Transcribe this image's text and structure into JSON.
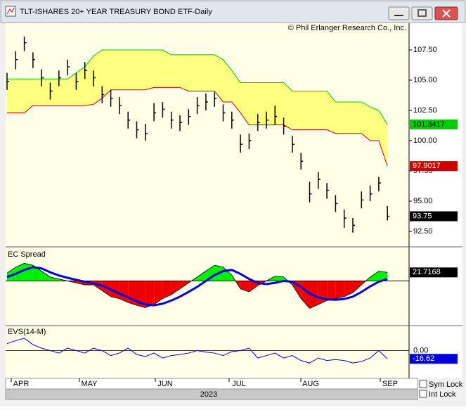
{
  "window": {
    "title": "TLT-ISHARES 20+ YEAR TREASURY BOND ETF-Daily"
  },
  "chart_data": [
    {
      "type": "ohlc",
      "annotation": "© Phil Erlanger Research Co., Inc.",
      "ylim": [
        91.28,
        109.71
      ],
      "yticks": [
        {
          "value": 107.5,
          "label": "107.50"
        },
        {
          "value": 105,
          "label": "105.00"
        },
        {
          "value": 102.5,
          "label": "102.50"
        },
        {
          "value": 100,
          "label": "100.00"
        },
        {
          "value": 97.5,
          "label": "97.50"
        },
        {
          "value": 95,
          "label": "95.00"
        },
        {
          "value": 92.5,
          "label": "92.50"
        }
      ],
      "high": [
        105.6,
        107.4,
        108.6,
        107.3,
        105.9,
        104.8,
        105.8,
        106.7,
        105.6,
        106.5,
        105.8,
        104.5,
        104.2,
        103.6,
        102.4,
        101.6,
        101.4,
        103.1,
        103.2,
        102.4,
        102.1,
        102.6,
        103.6,
        103.9,
        104.0,
        103.0,
        102.4,
        100.5,
        100.6,
        102.2,
        102.4,
        102.9,
        101.9,
        100.4,
        99.0,
        96.6,
        97.4,
        96.5,
        95.5,
        94.3,
        93.6,
        95.8,
        96.3,
        97.0,
        94.6
      ],
      "low": [
        104.2,
        105.9,
        107.4,
        106.0,
        104.5,
        103.4,
        104.5,
        105.4,
        104.2,
        105.1,
        104.5,
        103.1,
        102.8,
        102.2,
        101.0,
        100.2,
        100.0,
        101.6,
        101.9,
        101.0,
        100.8,
        101.3,
        102.2,
        102.5,
        102.8,
        101.6,
        101.0,
        99.0,
        99.3,
        100.8,
        101.0,
        101.3,
        100.5,
        99.0,
        97.6,
        94.9,
        96.0,
        95.2,
        94.1,
        92.8,
        92.4,
        94.4,
        95.0,
        95.8,
        93.4
      ],
      "close": [
        104.9,
        106.7,
        108.1,
        106.7,
        105.2,
        104.1,
        105.2,
        106.1,
        104.9,
        105.8,
        105.2,
        103.8,
        103.5,
        102.9,
        101.7,
        100.9,
        100.6,
        102.3,
        102.6,
        101.7,
        101.5,
        102.0,
        102.9,
        103.2,
        103.5,
        102.3,
        101.7,
        99.7,
        100.0,
        101.5,
        101.7,
        102.0,
        101.2,
        99.7,
        98.3,
        95.6,
        96.8,
        95.9,
        94.8,
        93.6,
        93.0,
        95.1,
        95.6,
        96.5,
        93.75
      ],
      "upper_band": [
        105.1,
        105.1,
        105.1,
        105.1,
        105.1,
        105.1,
        105.1,
        105.1,
        105.6,
        106.1,
        107.0,
        107.5,
        107.5,
        107.5,
        107.5,
        107.5,
        107.5,
        107.5,
        107.5,
        107.1,
        107.1,
        107.1,
        107.1,
        107.1,
        107.1,
        106.7,
        105.8,
        104.8,
        104.8,
        104.8,
        104.8,
        104.8,
        104.8,
        104.1,
        104.1,
        104.1,
        104.1,
        104.1,
        103.2,
        103.2,
        103.2,
        103.2,
        102.8,
        102.5,
        101.3417
      ],
      "lower_band": [
        102.3,
        102.3,
        102.3,
        102.9,
        102.9,
        102.9,
        102.9,
        102.9,
        102.9,
        102.9,
        103.0,
        103.5,
        104.2,
        104.2,
        104.2,
        104.2,
        104.2,
        104.4,
        104.4,
        104.4,
        104.4,
        104.1,
        104.1,
        104.1,
        104.1,
        103.2,
        103.2,
        102.3,
        101.3,
        101.3,
        101.3,
        101.3,
        101.3,
        100.9,
        100.9,
        100.9,
        100.9,
        100.9,
        100.6,
        100.6,
        100.6,
        100.6,
        100.0,
        100.0,
        97.9017
      ],
      "colors": {
        "bars": "#000000",
        "upper": "#00cc00",
        "lower": "#cc0000",
        "band": "#ffff80",
        "close_box": "#000000"
      }
    },
    {
      "type": "spread",
      "title": "EC Spread",
      "ylim": [
        -112,
        85
      ],
      "values": [
        20,
        35,
        45,
        40,
        25,
        10,
        5,
        0,
        -5,
        -10,
        -10,
        -25,
        -40,
        -45,
        -55,
        -62,
        -68,
        -60,
        -45,
        -35,
        -20,
        -5,
        10,
        25,
        40,
        35,
        15,
        -20,
        -28,
        -12,
        0,
        12,
        10,
        -10,
        -45,
        -70,
        -60,
        -50,
        -45,
        -40,
        -30,
        -10,
        10,
        25,
        21.7168
      ],
      "signal": [
        10,
        18,
        28,
        35,
        32,
        22,
        14,
        8,
        3,
        -2,
        -6,
        -12,
        -22,
        -32,
        -42,
        -52,
        -60,
        -62,
        -58,
        -50,
        -40,
        -28,
        -15,
        0,
        15,
        25,
        28,
        18,
        5,
        -5,
        -8,
        -5,
        0,
        -2,
        -15,
        -32,
        -42,
        -47,
        -48,
        -46,
        -40,
        -28,
        -14,
        -2,
        5
      ],
      "colors": {
        "positive": "#00ee00",
        "negative": "#ee0000",
        "signal": "#0000dd"
      }
    },
    {
      "type": "line",
      "title": "EVS(14-M)",
      "ylim": [
        -56,
        49
      ],
      "yticks": [
        {
          "value": 0,
          "label": "0.00"
        }
      ],
      "values": [
        14,
        20,
        25,
        12,
        5,
        0,
        -5,
        5,
        0,
        -5,
        5,
        0,
        -10,
        -5,
        5,
        -8,
        -12,
        -5,
        -15,
        -10,
        -8,
        -5,
        0,
        -3,
        -5,
        -10,
        -2,
        0,
        5,
        -15,
        -10,
        -5,
        -15,
        -10,
        -20,
        -25,
        -15,
        -20,
        -18,
        -20,
        -25,
        -22,
        -15,
        0,
        -16.62
      ],
      "color": "#0000dd"
    }
  ],
  "x_axis": {
    "months": [
      "APR",
      "MAY",
      "JUN",
      "JUL",
      "AUG",
      "SEP"
    ],
    "year": "2023"
  },
  "controls": [
    "Sym Lock",
    "Int Lock"
  ]
}
